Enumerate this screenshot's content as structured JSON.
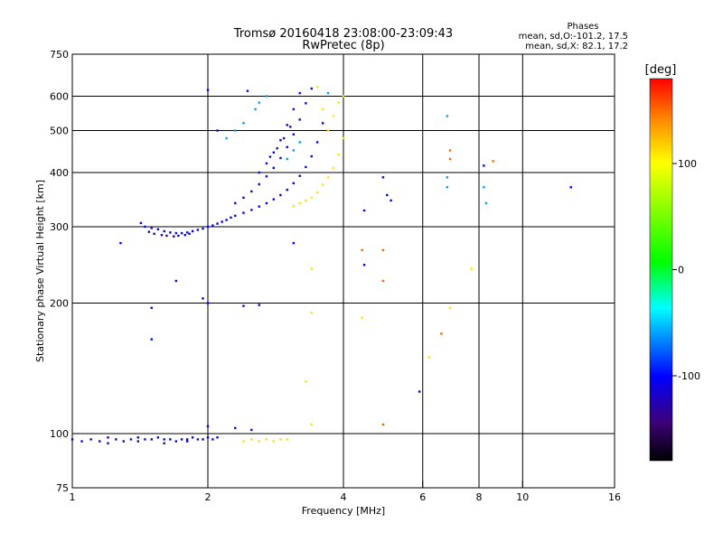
{
  "chart_data": {
    "type": "scatter",
    "title": "Tromsø 20160418 23:08:00-23:09:43",
    "subtitle": "RwPretec (8p)",
    "xlabel": "Frequency [MHz]",
    "ylabel": "Stationary phase Virtual Height [km]",
    "x_scale": "log",
    "y_scale": "log",
    "xlim": [
      1,
      16
    ],
    "ylim": [
      75,
      750
    ],
    "x_ticks": [
      1,
      2,
      4,
      6,
      8,
      10,
      16
    ],
    "x_tick_labels": [
      "1",
      "2",
      "4",
      "6",
      "8",
      "10",
      "16"
    ],
    "x_gridlines": [
      2,
      4,
      6,
      8,
      10
    ],
    "y_ticks": [
      75,
      100,
      200,
      300,
      400,
      500,
      600,
      750
    ],
    "y_tick_labels": [
      "75",
      "100",
      "200",
      "300",
      "400",
      "500",
      "600",
      "750"
    ],
    "y_gridlines": [
      100,
      200,
      300,
      400,
      500,
      600
    ],
    "grid": true,
    "legend_title": "Phases",
    "legend_lines": [
      "mean, sd,O:-101.2, 17.5",
      "mean, sd,X:  82.1, 17.2"
    ],
    "legend_position": "top-right",
    "colorbar": {
      "label": "[deg]",
      "ticks": [
        -100,
        0,
        100
      ],
      "tick_labels": [
        "-100",
        "0",
        "100"
      ],
      "range": [
        -180,
        180
      ],
      "colormap": "rainbow"
    },
    "series": [
      {
        "color_phase_deg": -100,
        "points": [
          [
            1.0,
            97
          ],
          [
            1.05,
            96
          ],
          [
            1.1,
            97
          ],
          [
            1.15,
            96
          ],
          [
            1.2,
            98
          ],
          [
            1.25,
            97
          ],
          [
            1.3,
            96
          ],
          [
            1.35,
            97
          ],
          [
            1.4,
            98
          ],
          [
            1.45,
            97
          ],
          [
            1.5,
            97
          ],
          [
            1.55,
            98
          ],
          [
            1.6,
            97
          ],
          [
            1.65,
            97
          ],
          [
            1.7,
            96
          ],
          [
            1.75,
            97
          ],
          [
            1.8,
            97
          ],
          [
            1.85,
            98
          ],
          [
            1.9,
            97
          ],
          [
            1.95,
            97
          ],
          [
            2.0,
            98
          ],
          [
            2.05,
            97
          ],
          [
            2.1,
            98
          ],
          [
            1.42,
            306
          ],
          [
            1.45,
            300
          ],
          [
            1.5,
            298
          ],
          [
            1.55,
            296
          ],
          [
            1.6,
            293
          ],
          [
            1.65,
            291
          ],
          [
            1.7,
            290
          ],
          [
            1.75,
            290
          ],
          [
            1.8,
            291
          ],
          [
            1.85,
            293
          ],
          [
            1.9,
            295
          ],
          [
            1.95,
            297
          ],
          [
            2.0,
            300
          ],
          [
            2.05,
            302
          ],
          [
            2.1,
            305
          ],
          [
            2.15,
            308
          ],
          [
            2.2,
            311
          ],
          [
            2.25,
            315
          ],
          [
            2.3,
            318
          ],
          [
            2.4,
            323
          ],
          [
            2.5,
            328
          ],
          [
            2.6,
            334
          ],
          [
            2.7,
            340
          ],
          [
            2.8,
            347
          ],
          [
            2.9,
            355
          ],
          [
            3.0,
            365
          ],
          [
            3.1,
            378
          ],
          [
            3.2,
            393
          ],
          [
            3.3,
            412
          ],
          [
            3.4,
            436
          ],
          [
            3.5,
            470
          ],
          [
            3.6,
            520
          ],
          [
            2.3,
            340
          ],
          [
            2.4,
            350
          ],
          [
            2.5,
            362
          ],
          [
            2.6,
            376
          ],
          [
            2.7,
            392
          ],
          [
            2.8,
            410
          ],
          [
            2.9,
            432
          ],
          [
            3.0,
            458
          ],
          [
            3.1,
            490
          ],
          [
            3.2,
            530
          ],
          [
            3.3,
            578
          ],
          [
            3.4,
            625
          ],
          [
            2.6,
            400
          ],
          [
            2.7,
            420
          ],
          [
            2.8,
            445
          ],
          [
            2.9,
            475
          ],
          [
            3.0,
            515
          ],
          [
            3.1,
            560
          ],
          [
            3.2,
            610
          ],
          [
            1.28,
            275
          ],
          [
            1.5,
            195
          ],
          [
            1.5,
            165
          ],
          [
            1.7,
            225
          ],
          [
            1.95,
            205
          ],
          [
            2.0,
            200
          ],
          [
            2.4,
            197
          ],
          [
            2.6,
            198
          ],
          [
            3.1,
            275
          ],
          [
            2.0,
            620
          ],
          [
            2.45,
            617
          ],
          [
            2.1,
            500
          ],
          [
            4.45,
            327
          ],
          [
            4.9,
            390
          ],
          [
            5.0,
            355
          ],
          [
            5.1,
            345
          ],
          [
            5.9,
            125
          ],
          [
            8.2,
            415
          ],
          [
            12.8,
            370
          ],
          [
            4.45,
            245
          ],
          [
            2.0,
            104
          ],
          [
            2.3,
            103
          ],
          [
            2.5,
            102
          ]
        ]
      },
      {
        "color_phase_deg": -130,
        "points": [
          [
            1.48,
            292
          ],
          [
            1.52,
            289
          ],
          [
            1.58,
            287
          ],
          [
            1.62,
            286
          ],
          [
            1.68,
            285
          ],
          [
            1.72,
            286
          ],
          [
            1.78,
            287
          ],
          [
            1.82,
            289
          ],
          [
            2.75,
            435
          ],
          [
            2.85,
            455
          ],
          [
            2.95,
            480
          ],
          [
            3.05,
            510
          ],
          [
            1.2,
            95
          ],
          [
            1.4,
            96
          ],
          [
            1.6,
            95
          ],
          [
            1.8,
            96
          ]
        ]
      },
      {
        "color_phase_deg": -60,
        "points": [
          [
            2.2,
            480
          ],
          [
            2.3,
            500
          ],
          [
            2.4,
            520
          ],
          [
            2.55,
            560
          ],
          [
            2.6,
            580
          ],
          [
            2.7,
            600
          ],
          [
            3.0,
            430
          ],
          [
            3.1,
            450
          ],
          [
            3.2,
            470
          ],
          [
            6.8,
            540
          ],
          [
            6.8,
            370
          ],
          [
            6.8,
            390
          ],
          [
            8.2,
            370
          ],
          [
            8.3,
            340
          ],
          [
            3.7,
            610
          ]
        ]
      },
      {
        "color_phase_deg": 110,
        "points": [
          [
            2.4,
            96
          ],
          [
            2.5,
            97
          ],
          [
            2.6,
            96
          ],
          [
            2.7,
            97
          ],
          [
            2.8,
            96
          ],
          [
            2.9,
            97
          ],
          [
            3.0,
            97
          ],
          [
            3.1,
            335
          ],
          [
            3.2,
            340
          ],
          [
            3.3,
            345
          ],
          [
            3.4,
            350
          ],
          [
            3.5,
            360
          ],
          [
            3.6,
            375
          ],
          [
            3.7,
            390
          ],
          [
            3.8,
            410
          ],
          [
            3.9,
            440
          ],
          [
            4.0,
            480
          ],
          [
            3.7,
            500
          ],
          [
            3.8,
            540
          ],
          [
            3.9,
            580
          ],
          [
            4.0,
            600
          ],
          [
            3.6,
            560
          ],
          [
            3.5,
            630
          ],
          [
            3.4,
            240
          ],
          [
            3.4,
            190
          ],
          [
            3.3,
            132
          ],
          [
            3.4,
            105
          ],
          [
            4.4,
            185
          ],
          [
            6.2,
            150
          ],
          [
            6.9,
            195
          ],
          [
            7.7,
            240
          ]
        ]
      },
      {
        "color_phase_deg": 150,
        "points": [
          [
            4.4,
            265
          ],
          [
            4.9,
            225
          ],
          [
            4.9,
            105
          ],
          [
            4.9,
            265
          ],
          [
            6.9,
            450
          ],
          [
            6.9,
            430
          ],
          [
            8.6,
            425
          ],
          [
            6.6,
            170
          ]
        ]
      }
    ]
  }
}
